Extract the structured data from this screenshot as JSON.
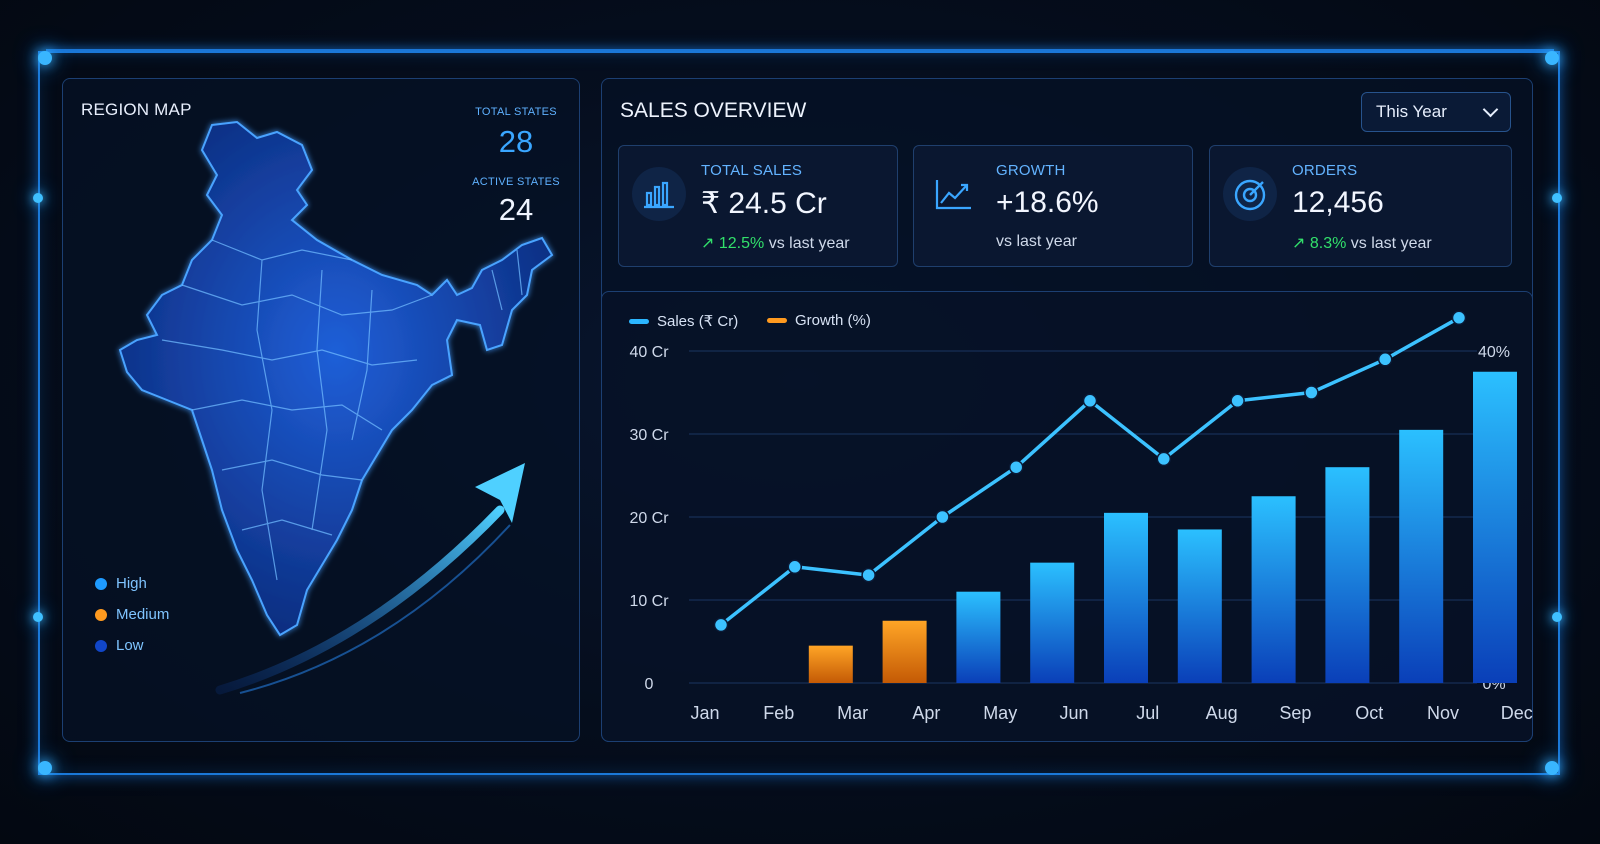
{
  "colors": {
    "accent": "#1e90ff",
    "high": "#1e9bff",
    "medium": "#ff9a1f",
    "low": "#1146c8",
    "sales_bar_top": "#2bb6ff",
    "sales_bar_bottom": "#0a3fb8",
    "growth_line": "#3cc2ff",
    "up_arrow": "#32e06b"
  },
  "map_panel": {
    "title": "REGION MAP",
    "total_states_label": "TOTAL STATES",
    "total_states_value": "28",
    "active_states_label": "ACTIVE STATES",
    "active_states_value": "24",
    "legend": [
      {
        "label": "High",
        "color": "#1e9bff"
      },
      {
        "label": "Medium",
        "color": "#ff9a1f"
      },
      {
        "label": "Low",
        "color": "#1146c8"
      }
    ],
    "map_icon": "india-map-icon",
    "trend_icon": "trend-arrow-icon"
  },
  "sales_panel": {
    "title": "SALES OVERVIEW",
    "period_select": {
      "selected": "This Year",
      "icon": "chevron-down-icon"
    },
    "kpis": [
      {
        "label": "TOTAL SALES",
        "value": "₹ 24.5 Cr",
        "change": "12.5%",
        "change_suffix": "vs last year",
        "icon": "bar-chart-icon"
      },
      {
        "label": "GROWTH",
        "value": "+18.6%",
        "change": "",
        "change_suffix": "vs last year",
        "icon": "line-chart-icon"
      },
      {
        "label": "ORDERS",
        "value": "12,456",
        "change": "8.3%",
        "change_suffix": "vs last year",
        "icon": "target-icon"
      }
    ]
  },
  "chart_data": {
    "type": "bar",
    "categories": [
      "Jan",
      "Feb",
      "Mar",
      "Apr",
      "May",
      "Jun",
      "Jul",
      "Aug",
      "Sep",
      "Oct",
      "Nov",
      "Dec"
    ],
    "series": [
      {
        "name": "Sales (₹ Cr)",
        "type": "bar",
        "axis": "left",
        "values": [
          null,
          4.5,
          7.5,
          11,
          14.5,
          20.5,
          18.5,
          22.5,
          26,
          30.5,
          37.5,
          null
        ],
        "highlight_colors": {
          "Feb": "#ff9a1f",
          "Mar": "#ff9a1f"
        }
      },
      {
        "name": "Growth (%)",
        "type": "line",
        "axis": "right",
        "values": [
          7,
          14,
          13,
          20,
          26,
          34,
          27,
          34,
          35,
          39,
          44,
          null
        ]
      }
    ],
    "left_ticks": [
      "0",
      "10 Cr",
      "20 Cr",
      "30 Cr",
      "40 Cr"
    ],
    "right_ticks": [
      "0%",
      "10%",
      "20%",
      "30%",
      "40%"
    ],
    "ylim": [
      0,
      40
    ],
    "y2lim": [
      0,
      40
    ],
    "grid": true,
    "legend_position": "top-left"
  }
}
